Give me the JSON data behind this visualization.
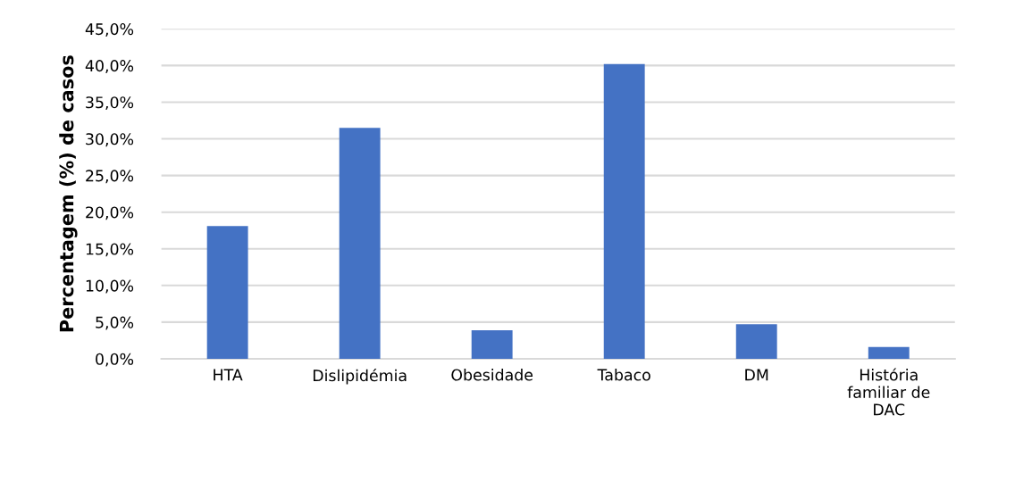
{
  "chart_data": {
    "type": "bar",
    "ylabel": "Percentagem (%) de casos",
    "categories": [
      "HTA",
      "Dislipidémia",
      "Obesidade",
      "Tabaco",
      "DM",
      "História\nfamiliar de\nDAC"
    ],
    "values": [
      18.1,
      31.5,
      3.9,
      40.2,
      4.7,
      1.6
    ],
    "color": "#4472c4",
    "ylim": [
      0,
      45
    ],
    "yticks": [
      {
        "value": 0,
        "label": "0,0%"
      },
      {
        "value": 5,
        "label": "5,0%"
      },
      {
        "value": 10,
        "label": "10,0%"
      },
      {
        "value": 15,
        "label": "15,0%"
      },
      {
        "value": 20,
        "label": "20,0%"
      },
      {
        "value": 25,
        "label": "25,0%"
      },
      {
        "value": 30,
        "label": "30,0%"
      },
      {
        "value": 35,
        "label": "35,0%"
      },
      {
        "value": 40,
        "label": "40,0%"
      },
      {
        "value": 45,
        "label": "45,0%"
      }
    ],
    "grid": "y",
    "legend": false
  }
}
